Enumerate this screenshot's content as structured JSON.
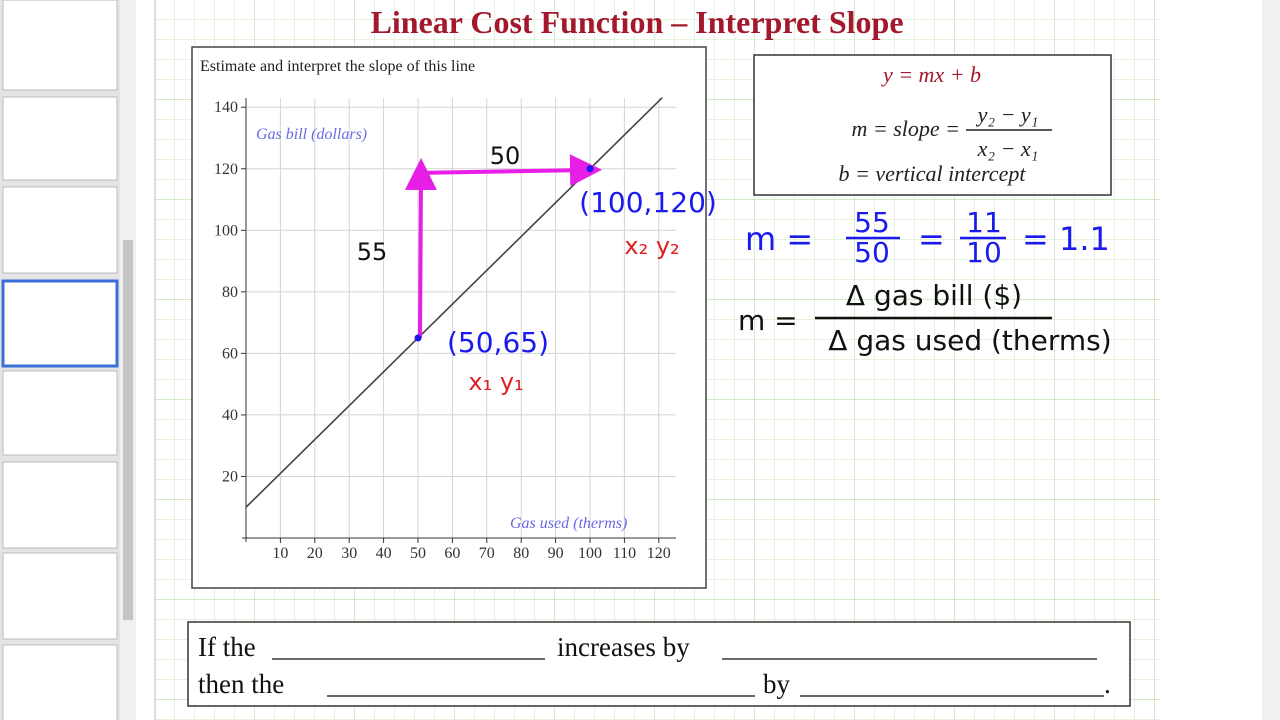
{
  "header": {
    "title": "Linear Cost Function – Interpret Slope"
  },
  "graph": {
    "instruction": "Estimate and interpret the slope of this line"
  },
  "chart_data": {
    "type": "line",
    "y_label": "Gas bill (dollars)",
    "x_label": "Gas used (therms)",
    "x": [
      0,
      121
    ],
    "series": [
      {
        "color": "#444444",
        "values": [
          10,
          143.1
        ]
      }
    ],
    "points": {
      "x": [
        50,
        100
      ],
      "values": [
        65,
        120
      ],
      "color": "#1a1aee"
    },
    "xlim": [
      0,
      125
    ],
    "ylim": [
      0,
      143
    ],
    "xticks": [
      10,
      20,
      30,
      40,
      50,
      60,
      70,
      80,
      90,
      100,
      110,
      120
    ],
    "yticks": [
      20,
      40,
      60,
      80,
      100,
      120,
      140
    ],
    "grid": true
  },
  "formula_box": {
    "line1": "y = mx + b",
    "slope_label": "m = slope =",
    "numerator": "y₂ − y₁",
    "denominator": "x₂ − x₁",
    "line3": "b = vertical intercept"
  },
  "annotations": {
    "run": "50",
    "rise": "55",
    "point2": "(100,120)",
    "point2_vars": "x₂  y₂",
    "point1": "(50,65)",
    "point1_vars": "x₁  y₁",
    "m_calc": {
      "lhs": "m =",
      "num1": "55",
      "den1": "50",
      "eq1": "=",
      "num2": "11",
      "den2": "10",
      "eq2": "= 1.1"
    },
    "m_meaning": {
      "lhs": "m =",
      "numerator": "Δ gas bill ($)",
      "denominator": "Δ gas used (therms)"
    }
  },
  "prompt": {
    "part1": "If the",
    "part2": "increases by",
    "part3": "then the",
    "part4": "by",
    "end": "."
  }
}
